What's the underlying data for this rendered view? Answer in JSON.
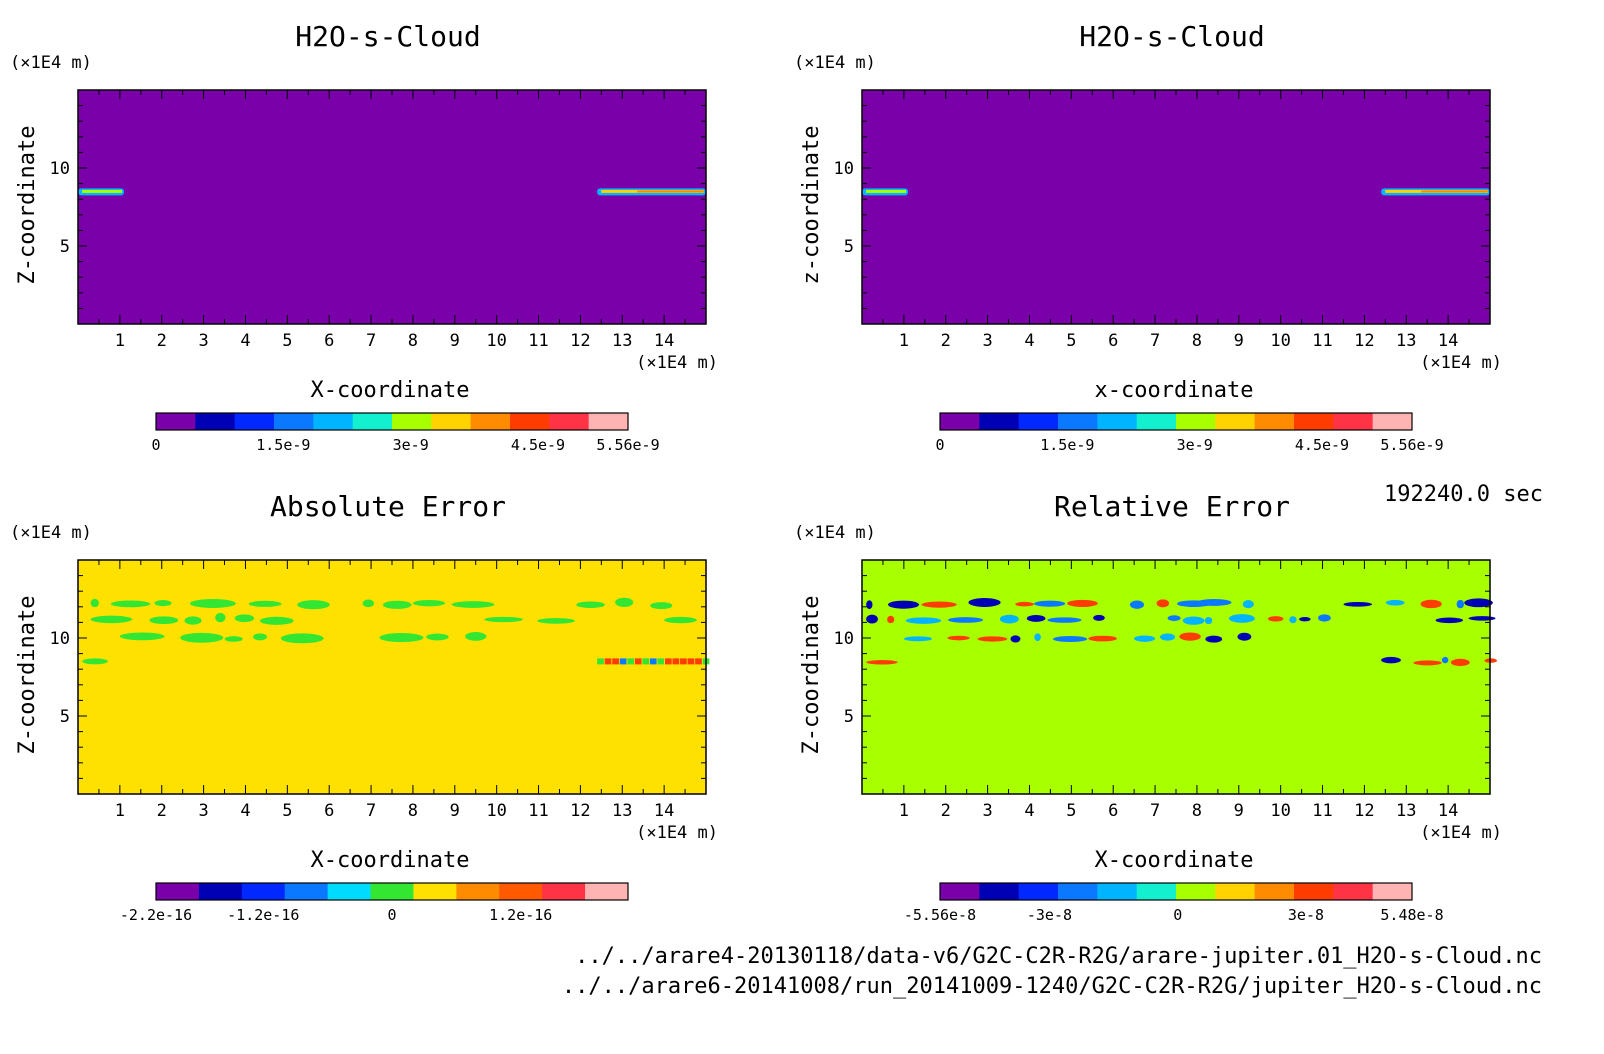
{
  "time_label": "192240.0 sec",
  "footer": {
    "line1": "../../arare4-20130118/data-v6/G2C-C2R-R2G/arare-jupiter.01_H2O-s-Cloud.nc",
    "line2": "../../arare6-20141008/run_20141009-1240/G2C-C2R-R2G/jupiter_H2O-s-Cloud.nc"
  },
  "chart_data": [
    {
      "type": "heatmap",
      "title": "H2O-s-Cloud",
      "xlabel": "X-coordinate",
      "ylabel": "Z-coordinate",
      "x_unit": "(×1E4 m)",
      "y_unit": "(×1E4 m)",
      "xlim": [
        0,
        15
      ],
      "ylim": [
        0,
        15
      ],
      "xticks": [
        "1",
        "2",
        "3",
        "4",
        "5",
        "6",
        "7",
        "8",
        "9",
        "10",
        "11",
        "12",
        "13",
        "14"
      ],
      "yticks": [
        "5",
        "10"
      ],
      "background_color": "#7a00aa",
      "colorbar": {
        "range": [
          0,
          5.56e-09
        ],
        "tick_labels": [
          "0",
          "1.5e-9",
          "3e-9",
          "4.5e-9",
          "5.56e-9"
        ],
        "tick_values": [
          0,
          1.5e-09,
          3e-09,
          4.5e-09,
          5.56e-09
        ],
        "colors": [
          "#7a00aa",
          "#0000b4",
          "#0028ff",
          "#0a78ff",
          "#00b4ff",
          "#12f0d0",
          "#a8ff00",
          "#ffd200",
          "#ff8c00",
          "#ff3c00",
          "#ff3346",
          "#ffb4b4"
        ]
      },
      "features": [
        {
          "desc": "cloud streak left edge",
          "x": [
            0,
            1.1
          ],
          "z": 8.5,
          "colors": [
            "#00b4ff",
            "#a8ff00"
          ]
        },
        {
          "desc": "cloud streak right edge",
          "x": [
            12.4,
            15
          ],
          "z": 8.5,
          "colors": [
            "#00b4ff",
            "#ffd200",
            "#ff8c00"
          ]
        }
      ]
    },
    {
      "type": "heatmap",
      "title": "H2O-s-Cloud",
      "xlabel": "x-coordinate",
      "ylabel": "z-coordinate",
      "x_unit": "(×1E4 m)",
      "y_unit": "(×1E4 m)",
      "xlim": [
        0,
        15
      ],
      "ylim": [
        0,
        15
      ],
      "xticks": [
        "1",
        "2",
        "3",
        "4",
        "5",
        "6",
        "7",
        "8",
        "9",
        "10",
        "11",
        "12",
        "13",
        "14"
      ],
      "yticks": [
        "5",
        "10"
      ],
      "background_color": "#7a00aa",
      "colorbar": {
        "range": [
          0,
          5.56e-09
        ],
        "tick_labels": [
          "0",
          "1.5e-9",
          "3e-9",
          "4.5e-9",
          "5.56e-9"
        ],
        "tick_values": [
          0,
          1.5e-09,
          3e-09,
          4.5e-09,
          5.56e-09
        ],
        "colors": [
          "#7a00aa",
          "#0000b4",
          "#0028ff",
          "#0a78ff",
          "#00b4ff",
          "#12f0d0",
          "#a8ff00",
          "#ffd200",
          "#ff8c00",
          "#ff3c00",
          "#ff3346",
          "#ffb4b4"
        ]
      },
      "features": [
        {
          "desc": "cloud streak left edge",
          "x": [
            0,
            1.1
          ],
          "z": 8.5,
          "colors": [
            "#00b4ff",
            "#a8ff00"
          ]
        },
        {
          "desc": "cloud streak right edge",
          "x": [
            12.4,
            15
          ],
          "z": 8.5,
          "colors": [
            "#00b4ff",
            "#ffd200",
            "#ff8c00"
          ]
        }
      ]
    },
    {
      "type": "heatmap",
      "title": "Absolute Error",
      "xlabel": "X-coordinate",
      "ylabel": "Z-coordinate",
      "x_unit": "(×1E4 m)",
      "y_unit": "(×1E4 m)",
      "xlim": [
        0,
        15
      ],
      "ylim": [
        0,
        15
      ],
      "xticks": [
        "1",
        "2",
        "3",
        "4",
        "5",
        "6",
        "7",
        "8",
        "9",
        "10",
        "11",
        "12",
        "13",
        "14"
      ],
      "yticks": [
        "5",
        "10"
      ],
      "background_color": "#ffe100",
      "colorbar": {
        "range": [
          -2.2e-16,
          2.2e-16
        ],
        "tick_labels": [
          "-2.2e-16",
          "-1.2e-16",
          "0",
          "1.2e-16"
        ],
        "tick_values": [
          -2.2e-16,
          -1.2e-16,
          0,
          1.2e-16
        ],
        "colors": [
          "#7a00aa",
          "#0000b4",
          "#0028ff",
          "#0a78ff",
          "#00dcff",
          "#32e632",
          "#ffe100",
          "#ff8c00",
          "#ff5a00",
          "#ff3346",
          "#ffb4b4"
        ]
      },
      "features": [
        {
          "desc": "blobs",
          "z_levels": [
            12.2,
            11.2,
            10.0,
            8.5
          ],
          "color": "#32e632"
        },
        {
          "desc": "mixed right streak",
          "x": [
            12.4,
            15
          ],
          "z": 8.5,
          "colors": [
            "#0a78ff",
            "#ff3c00",
            "#32e632"
          ]
        }
      ]
    },
    {
      "type": "heatmap",
      "title": "Relative Error",
      "xlabel": "X-coordinate",
      "ylabel": "Z-coordinate",
      "x_unit": "(×1E4 m)",
      "y_unit": "(×1E4 m)",
      "xlim": [
        0,
        15
      ],
      "ylim": [
        0,
        15
      ],
      "xticks": [
        "1",
        "2",
        "3",
        "4",
        "5",
        "6",
        "7",
        "8",
        "9",
        "10",
        "11",
        "12",
        "13",
        "14"
      ],
      "yticks": [
        "5",
        "10"
      ],
      "background_color": "#a8ff00",
      "colorbar": {
        "range": [
          -5.56e-08,
          5.48e-08
        ],
        "tick_labels": [
          "-5.56e-8",
          "-3e-8",
          "0",
          "3e-8",
          "5.48e-8"
        ],
        "tick_values": [
          -5.56e-08,
          -3e-08,
          0,
          3e-08,
          5.48e-08
        ],
        "colors": [
          "#7a00aa",
          "#0000b4",
          "#0028ff",
          "#0a78ff",
          "#00b4ff",
          "#12f0d0",
          "#a8ff00",
          "#ffd200",
          "#ff8c00",
          "#ff3c00",
          "#ff3346",
          "#ffb4b4"
        ]
      },
      "features": [
        {
          "desc": "blobs",
          "z_levels": [
            12.2,
            11.2,
            10.0,
            8.5
          ],
          "colors": [
            "#0a78ff",
            "#00b4ff",
            "#0000b4",
            "#ff3c00"
          ]
        }
      ]
    }
  ]
}
